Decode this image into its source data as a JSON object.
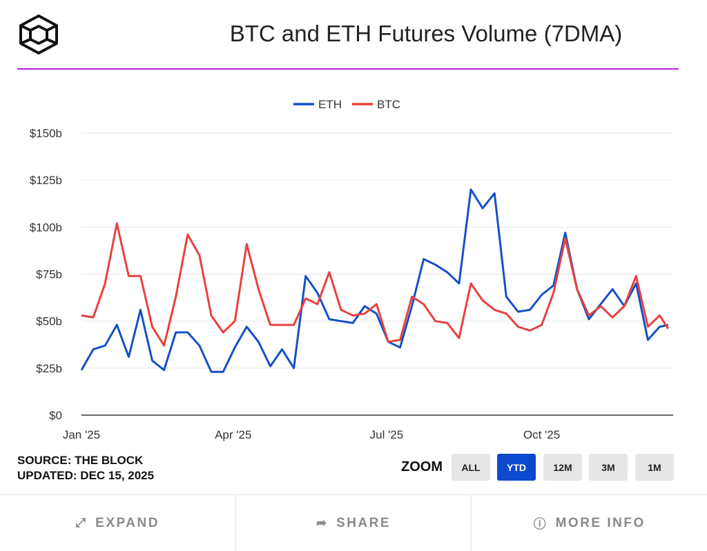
{
  "header": {
    "title": "BTC and ETH Futures Volume (7DMA)",
    "logo": "The Block"
  },
  "colors": {
    "accent": "#b01fd8",
    "eth": "#1450c8",
    "btc": "#e8413f",
    "active_button": "#0d49cf"
  },
  "meta": {
    "source": "SOURCE: THE BLOCK",
    "updated": "UPDATED: DEC 15, 2025"
  },
  "zoom": {
    "label": "ZOOM",
    "buttons": [
      "ALL",
      "YTD",
      "12M",
      "3M",
      "1M"
    ],
    "active": "YTD"
  },
  "footer": [
    {
      "label": "EXPAND",
      "icon": "expand-icon"
    },
    {
      "label": "SHARE",
      "icon": "share-icon"
    },
    {
      "label": "MORE INFO",
      "icon": "info-icon"
    }
  ],
  "chart_data": {
    "type": "line",
    "title": "BTC and ETH Futures Volume (7DMA)",
    "legend": "top-center",
    "grid": true,
    "ylim": [
      0,
      150
    ],
    "yticks": [
      "$0",
      "$25b",
      "$50b",
      "$75b",
      "$100b",
      "$125b",
      "$150b"
    ],
    "ytick_values": [
      0,
      25,
      50,
      75,
      100,
      125,
      150
    ],
    "xlim": [
      "2025-01-01",
      "2025-12-18"
    ],
    "xticks": [
      {
        "label": "Jan '25",
        "date": "2025-01-01"
      },
      {
        "label": "Apr '25",
        "date": "2025-04-01"
      },
      {
        "label": "Jul '25",
        "date": "2025-07-01"
      },
      {
        "label": "Oct '25",
        "date": "2025-10-01"
      }
    ],
    "x": [
      "2025-01-01",
      "2025-01-08",
      "2025-01-15",
      "2025-01-22",
      "2025-01-29",
      "2025-02-05",
      "2025-02-12",
      "2025-02-19",
      "2025-02-26",
      "2025-03-05",
      "2025-03-12",
      "2025-03-19",
      "2025-03-26",
      "2025-04-02",
      "2025-04-09",
      "2025-04-16",
      "2025-04-23",
      "2025-04-30",
      "2025-05-07",
      "2025-05-14",
      "2025-05-21",
      "2025-05-28",
      "2025-06-04",
      "2025-06-11",
      "2025-06-18",
      "2025-06-25",
      "2025-07-02",
      "2025-07-09",
      "2025-07-16",
      "2025-07-23",
      "2025-07-30",
      "2025-08-06",
      "2025-08-13",
      "2025-08-20",
      "2025-08-27",
      "2025-09-03",
      "2025-09-10",
      "2025-09-17",
      "2025-09-24",
      "2025-10-01",
      "2025-10-08",
      "2025-10-15",
      "2025-10-22",
      "2025-10-29",
      "2025-11-05",
      "2025-11-12",
      "2025-11-19",
      "2025-11-26",
      "2025-12-03",
      "2025-12-10",
      "2025-12-15"
    ],
    "series": [
      {
        "name": "ETH",
        "color": "#1450c8",
        "values": [
          24,
          35,
          37,
          48,
          31,
          56,
          29,
          24,
          44,
          44,
          37,
          23,
          23,
          36,
          47,
          39,
          26,
          35,
          25,
          74,
          65,
          51,
          50,
          49,
          58,
          54,
          39,
          36,
          58,
          83,
          80,
          76,
          70,
          120,
          110,
          118,
          63,
          55,
          56,
          64,
          69,
          97,
          67,
          51,
          59,
          67,
          58,
          70,
          40,
          47,
          48
        ]
      },
      {
        "name": "BTC",
        "color": "#e8413f",
        "values": [
          53,
          52,
          70,
          102,
          74,
          74,
          47,
          37,
          63,
          96,
          85,
          53,
          44,
          50,
          91,
          67,
          48,
          48,
          48,
          62,
          59,
          76,
          56,
          53,
          54,
          59,
          39,
          40,
          63,
          59,
          50,
          49,
          41,
          70,
          61,
          56,
          54,
          47,
          45,
          48,
          65,
          94,
          67,
          53,
          58,
          52,
          58,
          74,
          47,
          53,
          46
        ]
      }
    ]
  }
}
